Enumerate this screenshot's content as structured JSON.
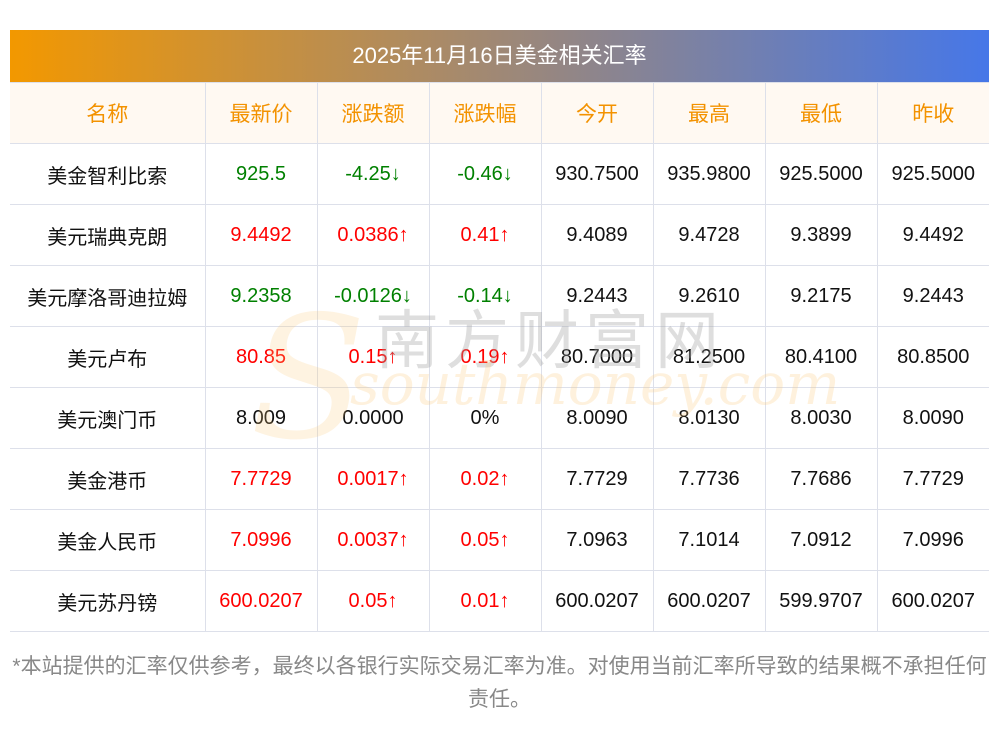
{
  "title": "2025年11月16日美金相关汇率",
  "headers": [
    "名称",
    "最新价",
    "涨跌额",
    "涨跌幅",
    "今开",
    "最高",
    "最低",
    "昨收"
  ],
  "rows": [
    {
      "name": "美金智利比索",
      "latest": "925.5",
      "change": "-4.25↓",
      "pct": "-0.46↓",
      "open": "930.7500",
      "high": "935.9800",
      "low": "925.5000",
      "prev": "925.5000",
      "trend": "down"
    },
    {
      "name": "美元瑞典克朗",
      "latest": "9.4492",
      "change": "0.0386↑",
      "pct": "0.41↑",
      "open": "9.4089",
      "high": "9.4728",
      "low": "9.3899",
      "prev": "9.4492",
      "trend": "up"
    },
    {
      "name": "美元摩洛哥迪拉姆",
      "latest": "9.2358",
      "change": "-0.0126↓",
      "pct": "-0.14↓",
      "open": "9.2443",
      "high": "9.2610",
      "low": "9.2175",
      "prev": "9.2443",
      "trend": "down"
    },
    {
      "name": "美元卢布",
      "latest": "80.85",
      "change": "0.15↑",
      "pct": "0.19↑",
      "open": "80.7000",
      "high": "81.2500",
      "low": "80.4100",
      "prev": "80.8500",
      "trend": "up"
    },
    {
      "name": "美元澳门币",
      "latest": "8.009",
      "change": "0.0000",
      "pct": "0%",
      "open": "8.0090",
      "high": "8.0130",
      "low": "8.0030",
      "prev": "8.0090",
      "trend": "flat"
    },
    {
      "name": "美金港币",
      "latest": "7.7729",
      "change": "0.0017↑",
      "pct": "0.02↑",
      "open": "7.7729",
      "high": "7.7736",
      "low": "7.7686",
      "prev": "7.7729",
      "trend": "up"
    },
    {
      "name": "美金人民币",
      "latest": "7.0996",
      "change": "0.0037↑",
      "pct": "0.05↑",
      "open": "7.0963",
      "high": "7.1014",
      "low": "7.0912",
      "prev": "7.0996",
      "trend": "up"
    },
    {
      "name": "美元苏丹镑",
      "latest": "600.0207",
      "change": "0.05↑",
      "pct": "0.01↑",
      "open": "600.0207",
      "high": "600.0207",
      "low": "599.9707",
      "prev": "600.0207",
      "trend": "up"
    }
  ],
  "watermark": {
    "cn": "南方财富网",
    "en": "southmoney.com"
  },
  "note": "*本站提供的汇率仅供参考，最终以各银行实际交易汇率为准。对使用当前汇率所导致的结果概不承担任何责任。",
  "colors": {
    "up": "#ff0000",
    "down": "#008000",
    "header": "#f39200"
  }
}
